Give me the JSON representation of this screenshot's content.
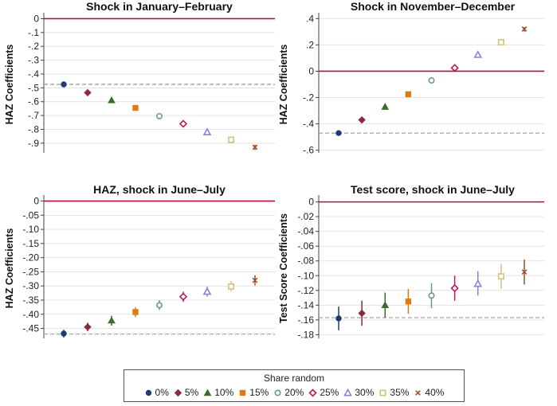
{
  "chart_data": [
    {
      "type": "scatter",
      "title": "Shock in January–February",
      "ylabel": "HAZ Coefficients",
      "xlabel": "",
      "ylim": [
        -0.97,
        0.02
      ],
      "yticks": [
        0,
        -0.1,
        -0.2,
        -0.3,
        -0.4,
        -0.5,
        -0.6,
        -0.7,
        -0.8,
        -0.9
      ],
      "ytick_labels": [
        "0",
        "-.1",
        "-.2",
        "-.3",
        "-.4",
        "-.5",
        "-.6",
        "-.7",
        "-.8",
        "-.9"
      ],
      "reference_line": 0,
      "baseline_line": -0.475,
      "series": [
        {
          "name": "0%",
          "value": -0.475,
          "ci": [
            -0.485,
            -0.465
          ]
        },
        {
          "name": "5%",
          "value": -0.535,
          "ci": [
            -0.545,
            -0.525
          ]
        },
        {
          "name": "10%",
          "value": -0.59,
          "ci": [
            -0.605,
            -0.575
          ]
        },
        {
          "name": "15%",
          "value": -0.645,
          "ci": [
            -0.66,
            -0.63
          ]
        },
        {
          "name": "20%",
          "value": -0.705,
          "ci": [
            -0.72,
            -0.69
          ]
        },
        {
          "name": "25%",
          "value": -0.76,
          "ci": [
            -0.775,
            -0.745
          ]
        },
        {
          "name": "30%",
          "value": -0.82,
          "ci": [
            -0.835,
            -0.805
          ]
        },
        {
          "name": "35%",
          "value": -0.875,
          "ci": [
            -0.895,
            -0.86
          ]
        },
        {
          "name": "40%",
          "value": -0.93,
          "ci": [
            -0.95,
            -0.91
          ]
        }
      ]
    },
    {
      "type": "scatter",
      "title": "Shock in November–December",
      "ylabel": "HAZ Coefficients",
      "xlabel": "",
      "ylim": [
        -0.62,
        0.42
      ],
      "yticks": [
        0.4,
        0.2,
        0,
        -0.2,
        -0.4,
        -0.6
      ],
      "ytick_labels": [
        ".4",
        ".2",
        "0",
        "-.2",
        "-.4",
        "-.6"
      ],
      "reference_line": 0,
      "baseline_line": -0.47,
      "series": [
        {
          "name": "0%",
          "value": -0.47,
          "ci": [
            -0.48,
            -0.46
          ]
        },
        {
          "name": "5%",
          "value": -0.37,
          "ci": [
            -0.38,
            -0.36
          ]
        },
        {
          "name": "10%",
          "value": -0.27,
          "ci": [
            -0.29,
            -0.255
          ]
        },
        {
          "name": "15%",
          "value": -0.175,
          "ci": [
            -0.195,
            -0.16
          ]
        },
        {
          "name": "20%",
          "value": -0.07,
          "ci": [
            -0.09,
            -0.055
          ]
        },
        {
          "name": "25%",
          "value": 0.025,
          "ci": [
            0.01,
            0.04
          ]
        },
        {
          "name": "30%",
          "value": 0.125,
          "ci": [
            0.105,
            0.14
          ]
        },
        {
          "name": "35%",
          "value": 0.22,
          "ci": [
            0.2,
            0.24
          ]
        },
        {
          "name": "40%",
          "value": 0.32,
          "ci": [
            0.3,
            0.335
          ]
        }
      ]
    },
    {
      "type": "scatter",
      "title": "HAZ, shock in June–July",
      "ylabel": "HAZ Coefficients",
      "xlabel": "",
      "ylim": [
        -0.485,
        0.01
      ],
      "yticks": [
        0,
        -0.05,
        -0.1,
        -0.15,
        -0.2,
        -0.25,
        -0.3,
        -0.35,
        -0.4,
        -0.45
      ],
      "ytick_labels": [
        "0",
        "-.05",
        "-.10",
        "-.15",
        "-.20",
        "-.25",
        "-.30",
        "-.35",
        "-.40",
        "-.45"
      ],
      "reference_line": 0,
      "baseline_line": -0.47,
      "series": [
        {
          "name": "0%",
          "value": -0.468,
          "ci": [
            -0.482,
            -0.455
          ]
        },
        {
          "name": "5%",
          "value": -0.445,
          "ci": [
            -0.46,
            -0.43
          ]
        },
        {
          "name": "10%",
          "value": -0.422,
          "ci": [
            -0.44,
            -0.405
          ]
        },
        {
          "name": "15%",
          "value": -0.392,
          "ci": [
            -0.41,
            -0.375
          ]
        },
        {
          "name": "20%",
          "value": -0.368,
          "ci": [
            -0.385,
            -0.35
          ]
        },
        {
          "name": "25%",
          "value": -0.338,
          "ci": [
            -0.356,
            -0.32
          ]
        },
        {
          "name": "30%",
          "value": -0.32,
          "ci": [
            -0.338,
            -0.302
          ]
        },
        {
          "name": "35%",
          "value": -0.302,
          "ci": [
            -0.32,
            -0.283
          ]
        },
        {
          "name": "40%",
          "value": -0.28,
          "ci": [
            -0.298,
            -0.262
          ]
        }
      ]
    },
    {
      "type": "scatter",
      "title": "Test score, shock in June–July",
      "ylabel": "Test Score Coefficients",
      "xlabel": "",
      "ylim": [
        -0.185,
        0.005
      ],
      "yticks": [
        0,
        -0.02,
        -0.04,
        -0.06,
        -0.08,
        -0.1,
        -0.12,
        -0.14,
        -0.16,
        -0.18
      ],
      "ytick_labels": [
        "0",
        "-.02",
        "-.04",
        "-.06",
        "-.08",
        "-.10",
        "-.12",
        "-.14",
        "-.16",
        "-.18"
      ],
      "reference_line": 0,
      "baseline_line": -0.157,
      "series": [
        {
          "name": "0%",
          "value": -0.158,
          "ci": [
            -0.174,
            -0.142
          ]
        },
        {
          "name": "5%",
          "value": -0.151,
          "ci": [
            -0.168,
            -0.134
          ]
        },
        {
          "name": "10%",
          "value": -0.14,
          "ci": [
            -0.157,
            -0.123
          ]
        },
        {
          "name": "15%",
          "value": -0.135,
          "ci": [
            -0.152,
            -0.118
          ]
        },
        {
          "name": "20%",
          "value": -0.127,
          "ci": [
            -0.144,
            -0.11
          ]
        },
        {
          "name": "25%",
          "value": -0.117,
          "ci": [
            -0.134,
            -0.1
          ]
        },
        {
          "name": "30%",
          "value": -0.111,
          "ci": [
            -0.127,
            -0.094
          ]
        },
        {
          "name": "35%",
          "value": -0.101,
          "ci": [
            -0.118,
            -0.084
          ]
        },
        {
          "name": "40%",
          "value": -0.095,
          "ci": [
            -0.112,
            -0.078
          ]
        }
      ]
    }
  ],
  "legend": {
    "title": "Share random",
    "items": [
      {
        "label": "0%",
        "color": "#1f3b73",
        "marker": "circle-filled"
      },
      {
        "label": "5%",
        "color": "#8b2d3a",
        "marker": "diamond-filled"
      },
      {
        "label": "10%",
        "color": "#3b6e2c",
        "marker": "triangle-filled"
      },
      {
        "label": "15%",
        "color": "#e07b10",
        "marker": "square-filled"
      },
      {
        "label": "20%",
        "color": "#6a9a8c",
        "marker": "circle-hollow"
      },
      {
        "label": "25%",
        "color": "#c2185b",
        "marker": "diamond-hollow"
      },
      {
        "label": "30%",
        "color": "#8c82d9",
        "marker": "triangle-hollow"
      },
      {
        "label": "35%",
        "color": "#d2c27a",
        "marker": "square-hollow"
      },
      {
        "label": "40%",
        "color": "#a0522d",
        "marker": "x"
      }
    ]
  },
  "colors": {
    "reference_line": "#b0123a",
    "baseline_line": "#999999",
    "grid": "#e3e3e3"
  }
}
